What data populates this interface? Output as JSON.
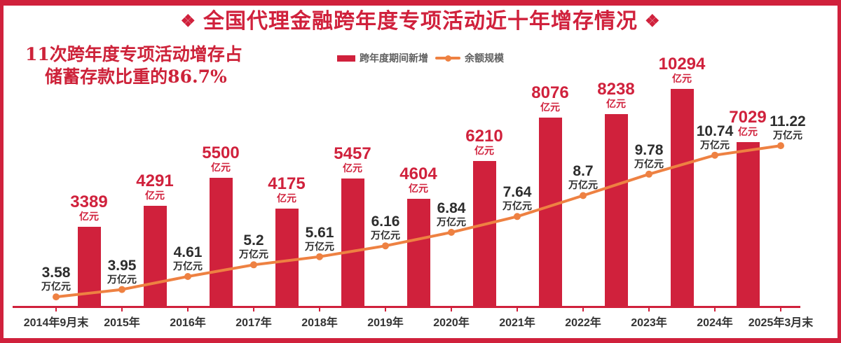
{
  "title": {
    "decor_left": "❖",
    "text": "全国代理金融跨年度专项活动近十年增存情况",
    "decor_right": "❖"
  },
  "annotation": {
    "line1": "11次跨年度专项活动增存占",
    "line2": "储蓄存款比重的86.7%"
  },
  "legend": {
    "bar_label": "跨年度期间新增",
    "line_label": "余额规模"
  },
  "colors": {
    "red": "#d0213c",
    "orange": "#ee8142",
    "value_text": "#2d2d2d",
    "axis_label_text": "#333333",
    "legend_text": "#5f5f5f"
  },
  "chart_data": {
    "type": "bar",
    "subtype": "bar-and-line-combo",
    "categories": [
      "2014年9月末",
      "2015年",
      "2016年",
      "2017年",
      "2018年",
      "2019年",
      "2020年",
      "2021年",
      "2022年",
      "2023年",
      "2024年",
      "2025年3月末"
    ],
    "series": [
      {
        "name": "跨年度期间新增",
        "type": "bar",
        "unit": "亿元",
        "between_categories": true,
        "values": [
          3389,
          4291,
          5500,
          4175,
          5457,
          4604,
          6210,
          8076,
          8238,
          10294,
          7029
        ]
      },
      {
        "name": "余额规模",
        "type": "line",
        "unit": "万亿元",
        "values": [
          3.58,
          3.95,
          4.61,
          5.2,
          5.61,
          6.16,
          6.84,
          7.64,
          8.7,
          9.78,
          10.74,
          11.22
        ]
      }
    ],
    "title": "全国代理金融跨年度专项活动近十年增存情况",
    "xlabel": "",
    "ylabel": "",
    "grid": false,
    "value_labels": true,
    "legend_position": "top-center"
  }
}
